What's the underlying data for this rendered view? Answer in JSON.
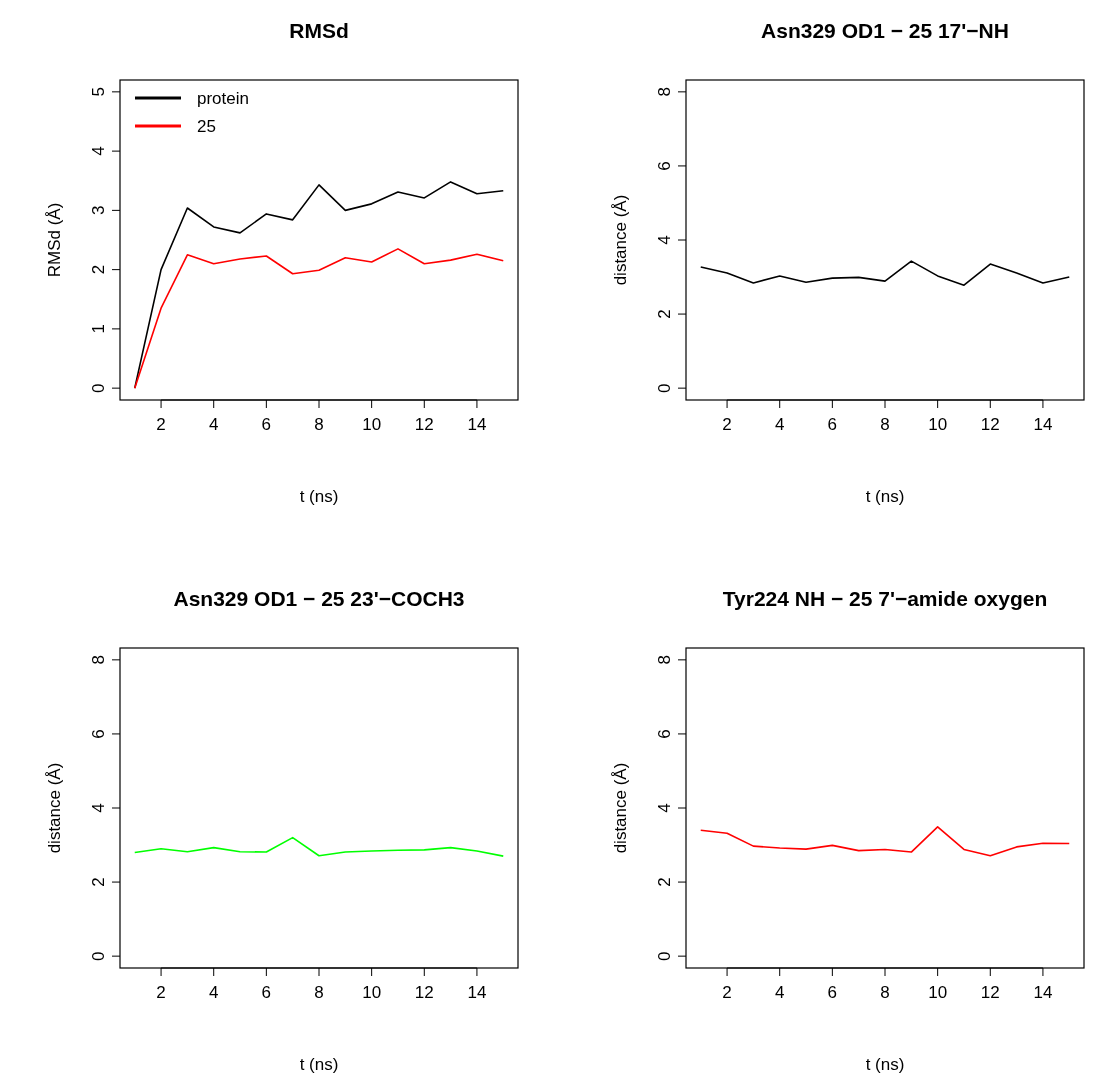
{
  "chart_data": [
    {
      "type": "line",
      "title": "RMSd",
      "xlabel": "t (ns)",
      "ylabel": "RMSd (Å)",
      "x": [
        1,
        2,
        3,
        4,
        5,
        6,
        7,
        8,
        9,
        10,
        11,
        12,
        13,
        14,
        15
      ],
      "xlim": [
        0.44,
        15.56
      ],
      "xticks": [
        2,
        4,
        6,
        8,
        10,
        12,
        14
      ],
      "ylim": [
        -0.2,
        5.2
      ],
      "yticks": [
        0,
        1,
        2,
        3,
        4,
        5
      ],
      "legend": "top left",
      "grid": false,
      "series": [
        {
          "name": "protein",
          "color": "#000000",
          "values": [
            0,
            2.0,
            3.04,
            2.72,
            2.62,
            2.94,
            2.84,
            3.43,
            3.0,
            3.11,
            3.31,
            3.21,
            3.48,
            3.28,
            3.33
          ]
        },
        {
          "name": "25",
          "color": "#ff0000",
          "values": [
            0,
            1.35,
            2.25,
            2.1,
            2.18,
            2.23,
            1.93,
            1.99,
            2.2,
            2.13,
            2.35,
            2.1,
            2.16,
            2.26,
            2.15
          ]
        }
      ]
    },
    {
      "type": "line",
      "title": "Asn329 OD1 − 25 17'−NH",
      "xlabel": "t (ns)",
      "ylabel": "distance (Å)",
      "x": [
        1,
        2,
        3,
        4,
        5,
        6,
        7,
        8,
        9,
        10,
        11,
        12,
        13,
        14,
        15
      ],
      "xlim": [
        0.44,
        15.56
      ],
      "xticks": [
        2,
        4,
        6,
        8,
        10,
        12,
        14
      ],
      "ylim": [
        -0.32,
        8.32
      ],
      "yticks": [
        0,
        2,
        4,
        6,
        8
      ],
      "legend": false,
      "grid": false,
      "series": [
        {
          "color": "#000000",
          "values": [
            3.27,
            3.11,
            2.84,
            3.03,
            2.86,
            2.97,
            2.99,
            2.89,
            3.43,
            3.03,
            2.78,
            3.35,
            3.11,
            2.84,
            3.0
          ]
        }
      ]
    },
    {
      "type": "line",
      "title": "Asn329 OD1 − 25 23'−COCH3",
      "xlabel": "t (ns)",
      "ylabel": "distance (Å)",
      "x": [
        1,
        2,
        3,
        4,
        5,
        6,
        7,
        8,
        9,
        10,
        11,
        12,
        13,
        14,
        15
      ],
      "xlim": [
        0.44,
        15.56
      ],
      "xticks": [
        2,
        4,
        6,
        8,
        10,
        12,
        14
      ],
      "ylim": [
        -0.32,
        8.32
      ],
      "yticks": [
        0,
        2,
        4,
        6,
        8
      ],
      "legend": false,
      "grid": false,
      "series": [
        {
          "color": "#00ff00",
          "values": [
            2.8,
            2.9,
            2.82,
            2.93,
            2.82,
            2.81,
            3.2,
            2.71,
            2.81,
            2.84,
            2.86,
            2.87,
            2.93,
            2.84,
            2.7
          ]
        }
      ]
    },
    {
      "type": "line",
      "title": "Tyr224 NH − 25 7'−amide oxygen",
      "xlabel": "t (ns)",
      "ylabel": "distance (Å)",
      "x": [
        1,
        2,
        3,
        4,
        5,
        6,
        7,
        8,
        9,
        10,
        11,
        12,
        13,
        14,
        15
      ],
      "xlim": [
        0.44,
        15.56
      ],
      "xticks": [
        2,
        4,
        6,
        8,
        10,
        12,
        14
      ],
      "ylim": [
        -0.32,
        8.32
      ],
      "yticks": [
        0,
        2,
        4,
        6,
        8
      ],
      "legend": false,
      "grid": false,
      "series": [
        {
          "color": "#ff0000",
          "values": [
            3.4,
            3.32,
            2.97,
            2.92,
            2.89,
            2.99,
            2.85,
            2.88,
            2.81,
            3.49,
            2.88,
            2.71,
            2.95,
            3.05,
            3.04
          ]
        }
      ]
    }
  ]
}
